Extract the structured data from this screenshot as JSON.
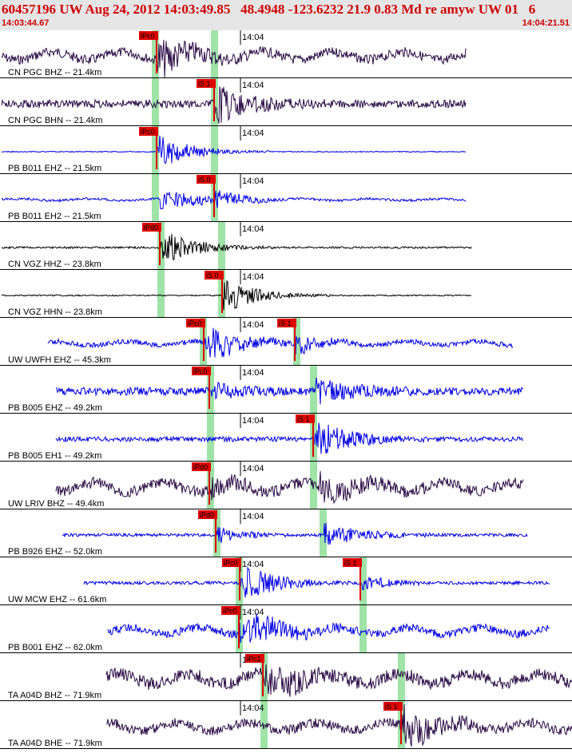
{
  "header": {
    "title": "60457196 UW Aug 24, 2012 14:03:49.85   48.4948 -123.6232 21.9 0.83 Md re amyw UW 01   6",
    "start_time": "14:03:44.67",
    "end_time": "14:04:21.51"
  },
  "colors": {
    "header_text": "#d00000",
    "pick": "#e00000",
    "phase_band": "#9fe3a7",
    "trace_blue": "#0000e6",
    "trace_dark": "#2a0a45",
    "trace_black": "#000000"
  },
  "minute_label": "14:04",
  "traces": [
    {
      "label": "CN PGC BHZ -- 21.4km",
      "color": "#2a0a45",
      "picks": [
        {
          "text": "iPc0"
        }
      ]
    },
    {
      "label": "CN PGC BHN -- 21.4km",
      "color": "#2a0a45",
      "picks": [
        {
          "text": "iS 1"
        }
      ]
    },
    {
      "label": "PB B011 EHZ -- 21.5km",
      "color": "#0000e6",
      "picks": [
        {
          "text": "iPc0"
        }
      ]
    },
    {
      "label": "PB B011 EH2 -- 21.5km",
      "color": "#0000e6",
      "picks": [
        {
          "text": "iS 0"
        }
      ]
    },
    {
      "label": "CN VGZ HHZ -- 23.8km",
      "color": "#000000",
      "picks": [
        {
          "text": "iPd0"
        }
      ]
    },
    {
      "label": "CN VGZ HHN -- 23.8km",
      "color": "#000000",
      "picks": [
        {
          "text": "iS 0"
        }
      ]
    },
    {
      "label": "UW UWFH EHZ -- 45.3km",
      "color": "#0000e6",
      "picks": [
        {
          "text": "iPc0"
        },
        {
          "text": "iS 1"
        }
      ]
    },
    {
      "label": "PB B005 EHZ -- 49.2km",
      "color": "#0000e6",
      "picks": [
        {
          "text": "iPc0"
        }
      ]
    },
    {
      "label": "PB B005 EH1 -- 49.2km",
      "color": "#0000e6",
      "picks": [
        {
          "text": "iS 1"
        }
      ]
    },
    {
      "label": "UW LRIV BHZ -- 49.4km",
      "color": "#2a0a45",
      "picks": [
        {
          "text": "iPd0"
        }
      ]
    },
    {
      "label": "PB B926 EHZ -- 52.0km",
      "color": "#0000e6",
      "picks": [
        {
          "text": "iPd0"
        }
      ]
    },
    {
      "label": "UW MCW EHZ -- 61.6km",
      "color": "#0000e6",
      "picks": [
        {
          "text": "iPc0"
        },
        {
          "text": "iS 1"
        }
      ]
    },
    {
      "label": "PB B001 EHZ -- 62.0km",
      "color": "#0000e6",
      "picks": [
        {
          "text": "iPc0"
        }
      ]
    },
    {
      "label": "TA A04D BHZ -- 71.9km",
      "color": "#2a0a45",
      "picks": [
        {
          "text": "iPc1"
        }
      ]
    },
    {
      "label": "TA A04D BHE -- 71.9km",
      "color": "#2a0a45",
      "picks": [
        {
          "text": "iS 1"
        }
      ]
    }
  ]
}
